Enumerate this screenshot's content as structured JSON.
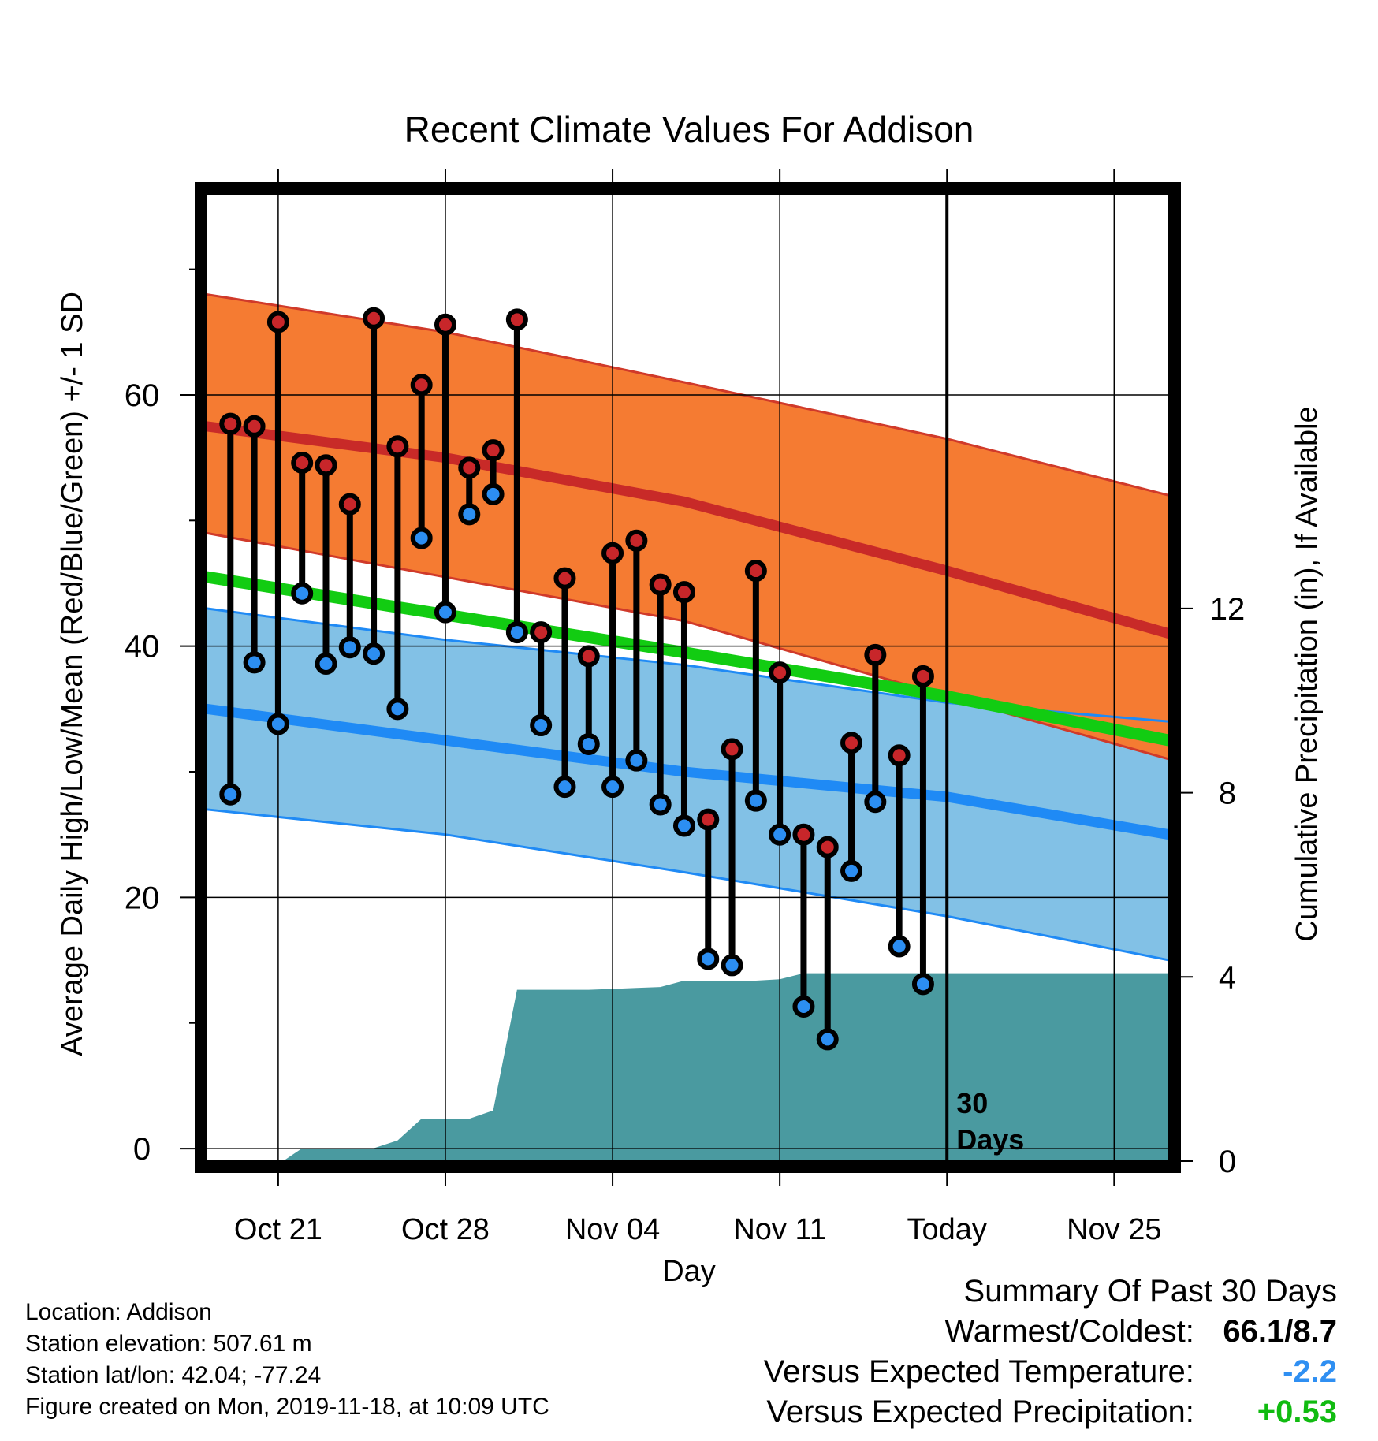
{
  "chart_data": {
    "type": "line",
    "title": "Recent Climate Values For Addison",
    "xlabel": "Day",
    "ylabel": "Average Daily High/Low/Mean (Red/Blue/Green) +/- 1 SD",
    "y2label": "Cumulative Precipitation (in), If Available",
    "x_ticks": [
      "Oct 21",
      "Oct 28",
      "Nov 04",
      "Nov 11",
      "Today",
      "Nov 25"
    ],
    "x_tick_days": [
      3,
      10,
      17,
      24,
      31,
      38
    ],
    "y_ticks": [
      0,
      20,
      40,
      60
    ],
    "y2_ticks": [
      0,
      4,
      8,
      12
    ],
    "xlim_days": [
      0,
      40.3
    ],
    "ylim": [
      -1,
      76
    ],
    "y2lim": [
      0,
      21
    ],
    "today_label": "30\nDays",
    "normals": {
      "x_days": [
        0,
        10,
        20,
        31,
        40.3
      ],
      "high_upper": [
        68,
        65,
        61,
        56.5,
        52
      ],
      "high_mean": [
        57.5,
        55,
        51.5,
        46,
        41
      ],
      "high_lower": [
        49,
        45.5,
        42,
        36,
        31
      ],
      "low_upper": [
        43,
        40.5,
        38.5,
        35.5,
        34
      ],
      "low_mean": [
        35,
        32.5,
        30,
        28,
        25
      ],
      "low_lower": [
        27,
        25,
        22,
        18.5,
        15
      ],
      "mean": [
        45.5,
        42.5,
        39.5,
        36,
        32.5
      ]
    },
    "series": [
      {
        "name": "High",
        "x_days": [
          1,
          2,
          3,
          4,
          5,
          6,
          7,
          8,
          9,
          10,
          11,
          12,
          13,
          14,
          15,
          16,
          17,
          18,
          19,
          20,
          21,
          22,
          23,
          24,
          25,
          26,
          27,
          28,
          29,
          30
        ],
        "values": [
          57.7,
          57.5,
          65.8,
          54.6,
          54.4,
          51.3,
          66.1,
          55.9,
          60.8,
          65.6,
          54.2,
          55.6,
          66.0,
          41.1,
          45.4,
          39.2,
          47.4,
          48.4,
          44.9,
          44.3,
          26.2,
          31.8,
          46.0,
          37.9,
          25.0,
          24.0,
          32.3,
          39.3,
          31.3,
          37.6
        ]
      },
      {
        "name": "Low",
        "x_days": [
          1,
          2,
          3,
          4,
          5,
          6,
          7,
          8,
          9,
          10,
          11,
          12,
          13,
          14,
          15,
          16,
          17,
          18,
          19,
          20,
          21,
          22,
          23,
          24,
          25,
          26,
          27,
          28,
          29,
          30
        ],
        "values": [
          28.2,
          38.7,
          33.8,
          44.2,
          38.6,
          39.9,
          39.4,
          35.0,
          48.6,
          42.7,
          50.5,
          52.1,
          41.1,
          33.7,
          28.8,
          32.2,
          28.8,
          30.9,
          27.4,
          25.7,
          15.1,
          14.6,
          27.7,
          25.0,
          11.3,
          8.7,
          22.1,
          27.6,
          16.1,
          13.1
        ]
      },
      {
        "name": "Cumulative Precipitation",
        "x_days": [
          0,
          3.2,
          4,
          7,
          8,
          9,
          10,
          11,
          12,
          13,
          14,
          15,
          16,
          17,
          18,
          19,
          20,
          21,
          22,
          23,
          24,
          25,
          26,
          27,
          28,
          29,
          30,
          31,
          40.3
        ],
        "values": [
          0,
          0,
          0.28,
          0.28,
          0.45,
          0.92,
          0.92,
          0.92,
          1.1,
          3.72,
          3.72,
          3.72,
          3.72,
          3.74,
          3.76,
          3.78,
          3.92,
          3.92,
          3.92,
          3.92,
          3.95,
          4.08,
          4.08,
          4.08,
          4.08,
          4.08,
          4.08,
          4.08,
          4.08
        ]
      }
    ],
    "colors": {
      "high_band": "#f57b32",
      "high_line": "#c82a28",
      "low_band": "#82c1e6",
      "low_line": "#1f8af5",
      "mean_line": "#12cc12",
      "precip": "#4a9aa0",
      "high_dot": "#c8262a",
      "low_dot": "#2c8ef2"
    }
  },
  "info": {
    "location": "Location: Addison",
    "elevation": "Station elevation: 507.61 m",
    "latlon": "Station lat/lon: 42.04; -77.24",
    "created": "Figure created on Mon, 2019-11-18, at 10:09 UTC"
  },
  "summary": {
    "heading": "Summary Of Past 30 Days",
    "warmest_label": "Warmest/Coldest:",
    "warmest_value": "66.1/8.7",
    "temp_label": "Versus Expected Temperature:",
    "temp_value": "-2.2",
    "temp_color": "#2f8ff2",
    "precip_label": "Versus Expected Precipitation:",
    "precip_value": "+0.53",
    "precip_color": "#11bb11"
  }
}
